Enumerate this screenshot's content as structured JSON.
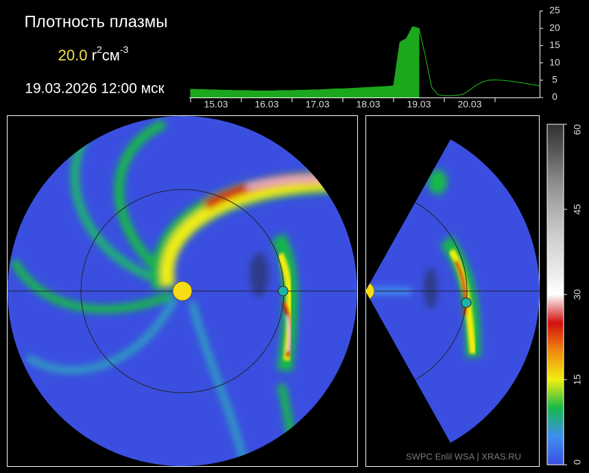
{
  "header": {
    "title": "Плотность плазмы",
    "value": "20.0",
    "unit": [
      "r",
      "2",
      "см",
      "-3"
    ],
    "datetime": "19.03.2026 12:00 мск"
  },
  "credit": "SWPC Enlil WSA  |  XRAS.RU",
  "chart_data": [
    {
      "type": "line",
      "categories": [
        null,
        null,
        null,
        null,
        "15.03",
        null,
        null,
        null,
        null,
        null,
        null,
        null,
        "16.03",
        null,
        null,
        null,
        null,
        null,
        null,
        null,
        "17.03",
        null,
        null,
        null,
        null,
        null,
        null,
        null,
        "18.03",
        null,
        null,
        null,
        null,
        null,
        null,
        null,
        "19.03",
        null,
        null,
        null,
        null,
        null,
        null,
        null,
        "20.03",
        null,
        null,
        null,
        null,
        null,
        null,
        null,
        null,
        null,
        null,
        null
      ],
      "series": [
        {
          "color": "#1ca81c",
          "fill": true,
          "values": [
            2.4,
            2.3,
            2.3,
            2.2,
            2.2,
            2.1,
            2.1,
            2.0,
            2.0,
            2.0,
            1.9,
            1.9,
            1.9,
            1.9,
            2.0,
            2.0,
            2.0,
            2.1,
            2.1,
            2.2,
            2.2,
            2.3,
            2.4,
            2.5,
            2.5,
            2.6,
            2.7,
            2.8,
            2.9,
            3.0,
            3.1,
            3.2,
            3.4,
            16.0,
            17.0,
            20.5,
            20.0,
            null,
            null,
            null,
            null,
            null,
            null,
            null,
            null,
            null,
            null,
            null,
            null,
            null,
            null,
            null,
            null,
            null,
            null,
            null
          ]
        },
        {
          "color": "#1ca81c",
          "fill": false,
          "values": [
            null,
            null,
            null,
            null,
            null,
            null,
            null,
            null,
            null,
            null,
            null,
            null,
            null,
            null,
            null,
            null,
            null,
            null,
            null,
            null,
            null,
            null,
            null,
            null,
            null,
            null,
            null,
            null,
            null,
            null,
            null,
            null,
            null,
            null,
            null,
            null,
            20.0,
            12.0,
            3.0,
            0.8,
            0.5,
            0.5,
            0.6,
            1.0,
            2.2,
            3.5,
            4.5,
            5.0,
            5.1,
            5.0,
            4.8,
            4.6,
            4.3,
            4.0,
            3.7,
            3.4
          ]
        }
      ],
      "ylim": [
        0,
        25
      ],
      "yticks": [
        0,
        5,
        10,
        15,
        20,
        25
      ]
    },
    {
      "type": "colorbar",
      "ylim": [
        0,
        60
      ],
      "yticks": [
        0,
        15,
        30,
        45,
        60
      ],
      "colors": [
        "#3a4fe0",
        "#3f8ff0",
        "#18b84a",
        "#f2ee10",
        "#f08a10",
        "#d01010",
        "#ffffff",
        "#e6e6e6",
        "#cfcfcf",
        "#b0b0b0",
        "#8a8a8a",
        "#5a5a5a",
        "#303030"
      ]
    }
  ]
}
